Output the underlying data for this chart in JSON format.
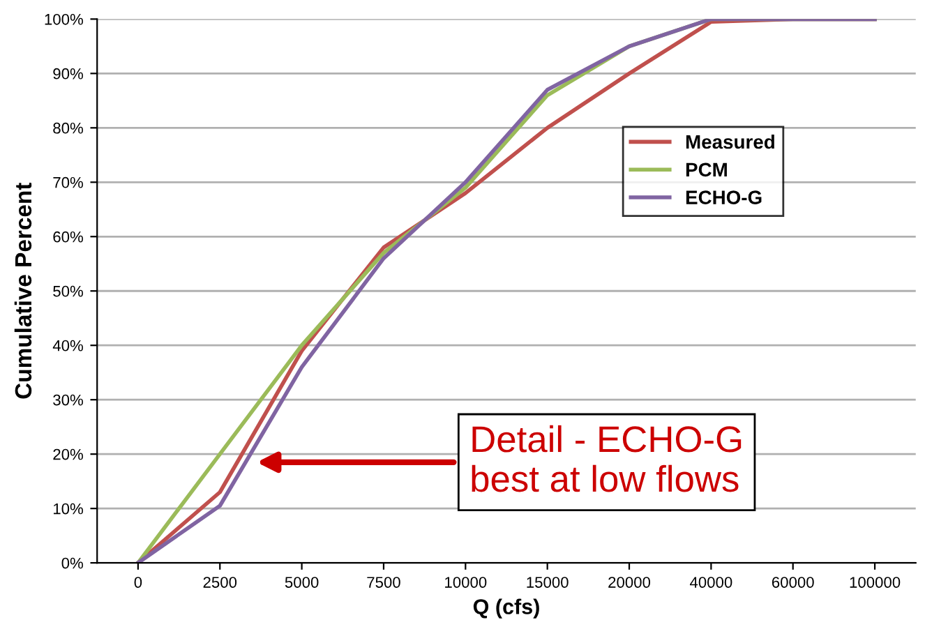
{
  "chart_data": {
    "type": "line",
    "xlabel": "Q (cfs)",
    "ylabel": "Cumulative Percent",
    "categories": [
      "0",
      "2500",
      "5000",
      "7500",
      "10000",
      "15000",
      "20000",
      "40000",
      "60000",
      "100000"
    ],
    "series": [
      {
        "name": "Measured",
        "color": "#c0504d",
        "values": [
          0,
          13,
          39,
          58,
          68,
          80,
          90,
          99.5,
          100,
          100
        ]
      },
      {
        "name": "PCM",
        "color": "#9bbb59",
        "values": [
          0,
          20,
          40,
          57,
          69,
          86,
          95,
          100,
          100,
          100
        ]
      },
      {
        "name": "ECHO-G",
        "color": "#8064a2",
        "values": [
          0,
          10.5,
          36,
          56,
          70,
          87,
          95,
          100,
          100,
          100
        ]
      }
    ],
    "ylim": [
      0,
      100
    ],
    "yticks": [
      {
        "value": 0,
        "label": "0%"
      },
      {
        "value": 10,
        "label": "10%"
      },
      {
        "value": 20,
        "label": "20%"
      },
      {
        "value": 30,
        "label": "30%"
      },
      {
        "value": 40,
        "label": "40%"
      },
      {
        "value": 50,
        "label": "50%"
      },
      {
        "value": 60,
        "label": "60%"
      },
      {
        "value": 70,
        "label": "70%"
      },
      {
        "value": 80,
        "label": "80%"
      },
      {
        "value": 90,
        "label": "90%"
      },
      {
        "value": 100,
        "label": "100%"
      }
    ],
    "grid": "y",
    "legend": "right",
    "marker": "none",
    "line_style": "solid",
    "annotations": [
      "Detail - ECHO-G\nbest at low flows"
    ]
  }
}
